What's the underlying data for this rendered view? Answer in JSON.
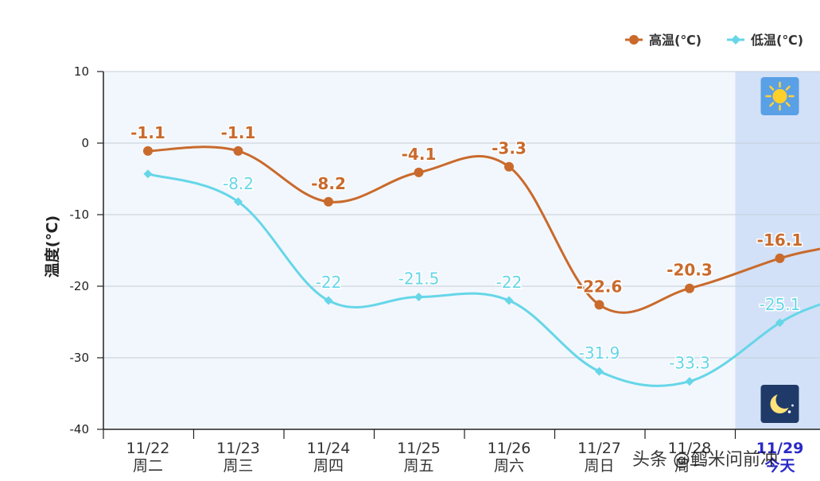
{
  "chart_data": {
    "type": "line",
    "title": "",
    "ylabel": "温度(℃)",
    "xlabel": "",
    "ylim": [
      -40,
      10
    ],
    "yticks": [
      10,
      0,
      -10,
      -20,
      -30,
      -40
    ],
    "categories": [
      {
        "date": "11/22",
        "weekday": "周二"
      },
      {
        "date": "11/23",
        "weekday": "周三"
      },
      {
        "date": "11/24",
        "weekday": "周四"
      },
      {
        "date": "11/25",
        "weekday": "周五"
      },
      {
        "date": "11/26",
        "weekday": "周六"
      },
      {
        "date": "11/27",
        "weekday": "周日"
      },
      {
        "date": "11/28",
        "weekday": "周一"
      },
      {
        "date": "11/29",
        "weekday": "今天"
      }
    ],
    "highlight_index": 7,
    "series": [
      {
        "name": "高温(℃)",
        "color": "#c96a2c",
        "marker": "circle",
        "values": [
          -1.1,
          -1.1,
          -8.2,
          -4.1,
          -3.3,
          -22.6,
          -20.3,
          -16.1
        ],
        "labels": [
          "-1.1",
          "-1.1",
          "-8.2",
          "-4.1",
          "-3.3",
          "-22.6",
          "-20.3",
          "-16.1"
        ]
      },
      {
        "name": "低温(℃)",
        "color": "#66d6e8",
        "marker": "diamond",
        "values": [
          -4.3,
          -8.2,
          -22,
          -21.5,
          -22,
          -31.9,
          -33.3,
          -25.1
        ],
        "labels": [
          "",
          "-8.2",
          "-22",
          "-21.5",
          "-22",
          "-31.9",
          "-33.3",
          "-25.1"
        ]
      }
    ],
    "legend_position": "top-right",
    "grid": true,
    "weather_icons": {
      "day": "sun-icon",
      "night": "moon-icon"
    }
  },
  "watermark": "头条 @鹌米问前冲",
  "colors": {
    "plot_bg": "#f2f7fd",
    "highlight_bg": "#d2e1f7",
    "grid": "#c7ced8"
  }
}
